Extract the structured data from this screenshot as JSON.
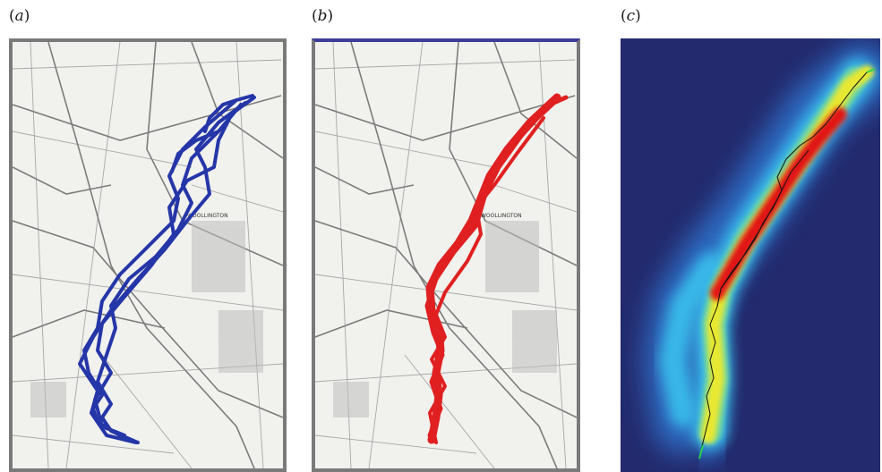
{
  "panels": [
    {
      "id": "a",
      "label_open": "(",
      "label_letter": "a",
      "label_close": ")"
    },
    {
      "id": "b",
      "label_open": "(",
      "label_letter": "b",
      "label_close": ")"
    },
    {
      "id": "c",
      "label_open": "(",
      "label_letter": "c",
      "label_close": ")"
    }
  ],
  "map_text": "WOOLLINGTON",
  "colors": {
    "track_blue": "#2536a8",
    "track_red": "#e02020",
    "heat_background": "#232a6d",
    "heat_cyan": "#39b8e8",
    "heat_yellow": "#e8e832",
    "heat_red": "#e01818",
    "flight_line": "#111111",
    "flight_end": "#2ad04a"
  }
}
